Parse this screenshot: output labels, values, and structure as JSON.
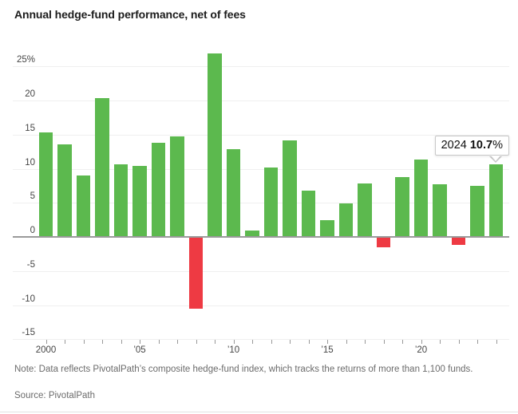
{
  "header": {
    "title": "Annual hedge-fund performance, net of fees"
  },
  "chart_data": {
    "type": "bar",
    "title": "Annual hedge-fund performance, net of fees",
    "categories": [
      2000,
      2001,
      2002,
      2003,
      2004,
      2005,
      2006,
      2007,
      2008,
      2009,
      2010,
      2011,
      2012,
      2013,
      2014,
      2015,
      2016,
      2017,
      2018,
      2019,
      2020,
      2021,
      2022,
      2023,
      2024
    ],
    "values": [
      15.3,
      13.6,
      9.0,
      20.3,
      10.6,
      10.4,
      13.8,
      14.7,
      -10.5,
      26.9,
      12.9,
      0.9,
      10.2,
      14.1,
      6.8,
      2.4,
      4.9,
      7.8,
      -1.5,
      8.8,
      11.4,
      7.7,
      -1.2,
      7.5,
      10.7
    ],
    "unit": "%",
    "xlabel": "",
    "ylabel": "",
    "ylim": [
      -15,
      27.5
    ],
    "yticks": [
      25,
      20,
      15,
      10,
      5,
      0,
      -5,
      -10,
      -15
    ],
    "ytick_labels": [
      "25%",
      "20",
      "15",
      "10",
      "5",
      "0",
      "-5",
      "-10",
      "-15"
    ],
    "xticks": [
      {
        "index": 0,
        "label": "2000"
      },
      {
        "index": 5,
        "label": "’05"
      },
      {
        "index": 10,
        "label": "’10"
      },
      {
        "index": 15,
        "label": "’15"
      },
      {
        "index": 20,
        "label": "’20"
      }
    ],
    "x_minor_ticks": "one per year",
    "grid": true,
    "legend_position": "none",
    "colors": {
      "positive": "#5cb94e",
      "negative": "#ee3a43",
      "zero_line": "#9a9a9a",
      "gridline": "#efefef"
    },
    "annotation": {
      "target_year": 2024,
      "year_label": "2024",
      "value_label": "10.7",
      "value_suffix": "%"
    }
  },
  "footer": {
    "note": "Note: Data reflects PivotalPath’s composite hedge-fund index, which tracks the returns of more than 1,100 funds.",
    "source": "Source: PivotalPath"
  }
}
